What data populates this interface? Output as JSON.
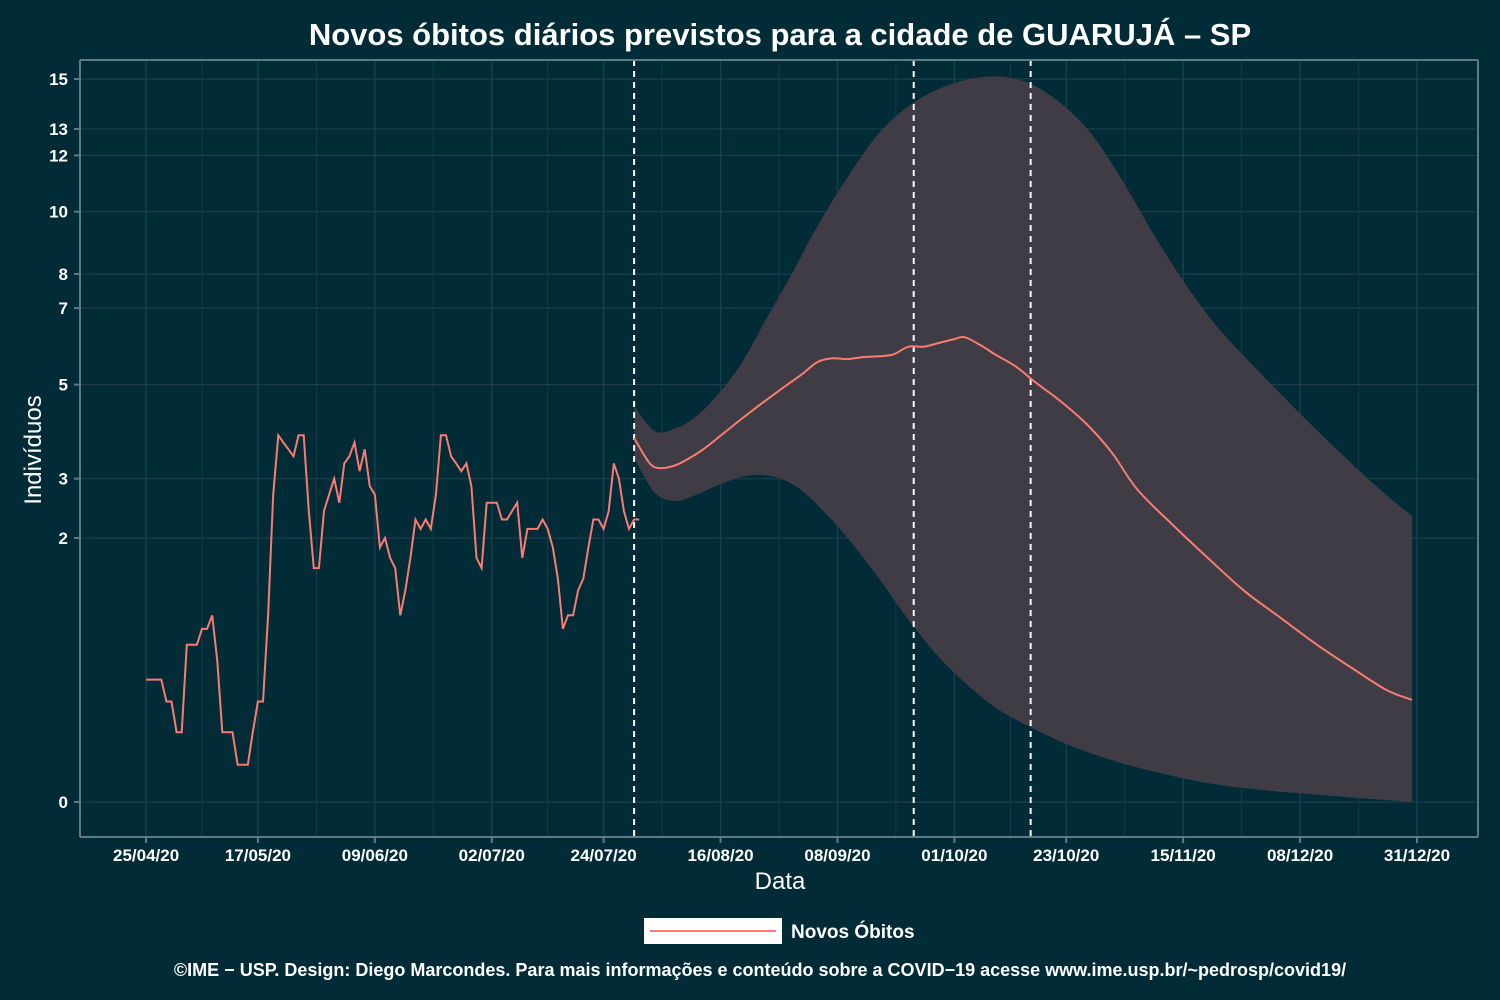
{
  "chart_data": {
    "type": "line",
    "title": "Novos óbitos diários previstos para a cidade de GUARUJÁ – SP",
    "xlabel": "Data",
    "ylabel": "Indivíduos",
    "x_ticks": [
      {
        "date": "2020-04-25",
        "label": "25/04/20"
      },
      {
        "date": "2020-05-17",
        "label": "17/05/20"
      },
      {
        "date": "2020-06-09",
        "label": "09/06/20"
      },
      {
        "date": "2020-07-02",
        "label": "02/07/20"
      },
      {
        "date": "2020-07-24",
        "label": "24/07/20"
      },
      {
        "date": "2020-08-16",
        "label": "16/08/20"
      },
      {
        "date": "2020-09-08",
        "label": "08/09/20"
      },
      {
        "date": "2020-10-01",
        "label": "01/10/20"
      },
      {
        "date": "2020-10-23",
        "label": "23/10/20"
      },
      {
        "date": "2020-11-15",
        "label": "15/11/20"
      },
      {
        "date": "2020-12-08",
        "label": "08/12/20"
      },
      {
        "date": "2020-12-31",
        "label": "31/12/20"
      }
    ],
    "y_scale": "sqrt",
    "y_ticks": [
      0,
      2,
      3,
      5,
      7,
      8,
      10,
      12,
      13,
      15
    ],
    "ylim": [
      0,
      15.8
    ],
    "xlim": [
      "2020-04-12",
      "2021-01-12"
    ],
    "grid": true,
    "legend_position": "bottom",
    "vertical_lines": [
      "2020-07-30",
      "2020-09-23",
      "2020-10-16"
    ],
    "colors": {
      "background": "#022b38",
      "line": "#f87c72",
      "band": "#403c45",
      "text": "#ffffff",
      "grid": "#1c3f4b",
      "axis": "#5f7a80"
    },
    "series": [
      {
        "name": "Novos Óbitos",
        "observed": [
          [
            "2020-04-25",
            0.43
          ],
          [
            "2020-04-26",
            0.43
          ],
          [
            "2020-04-27",
            0.43
          ],
          [
            "2020-04-28",
            0.43
          ],
          [
            "2020-04-29",
            0.29
          ],
          [
            "2020-04-30",
            0.29
          ],
          [
            "2020-05-01",
            0.14
          ],
          [
            "2020-05-02",
            0.14
          ],
          [
            "2020-05-03",
            0.71
          ],
          [
            "2020-05-04",
            0.71
          ],
          [
            "2020-05-05",
            0.71
          ],
          [
            "2020-05-06",
            0.86
          ],
          [
            "2020-05-07",
            0.86
          ],
          [
            "2020-05-08",
            1.0
          ],
          [
            "2020-05-09",
            0.57
          ],
          [
            "2020-05-10",
            0.14
          ],
          [
            "2020-05-11",
            0.14
          ],
          [
            "2020-05-12",
            0.14
          ],
          [
            "2020-05-13",
            0.04
          ],
          [
            "2020-05-14",
            0.04
          ],
          [
            "2020-05-15",
            0.04
          ],
          [
            "2020-05-16",
            0.14
          ],
          [
            "2020-05-17",
            0.29
          ],
          [
            "2020-05-18",
            0.29
          ],
          [
            "2020-05-19",
            1.0
          ],
          [
            "2020-05-20",
            2.71
          ],
          [
            "2020-05-21",
            3.86
          ],
          [
            "2020-05-22",
            3.71
          ],
          [
            "2020-05-23",
            3.57
          ],
          [
            "2020-05-24",
            3.43
          ],
          [
            "2020-05-25",
            3.86
          ],
          [
            "2020-05-26",
            3.86
          ],
          [
            "2020-05-27",
            2.43
          ],
          [
            "2020-05-28",
            1.57
          ],
          [
            "2020-05-29",
            1.57
          ],
          [
            "2020-05-30",
            2.43
          ],
          [
            "2020-05-31",
            2.71
          ],
          [
            "2020-06-01",
            3.0
          ],
          [
            "2020-06-02",
            2.57
          ],
          [
            "2020-06-03",
            3.29
          ],
          [
            "2020-06-04",
            3.43
          ],
          [
            "2020-06-05",
            3.71
          ],
          [
            "2020-06-06",
            3.14
          ],
          [
            "2020-06-07",
            3.57
          ],
          [
            "2020-06-08",
            2.86
          ],
          [
            "2020-06-09",
            2.71
          ],
          [
            "2020-06-10",
            1.86
          ],
          [
            "2020-06-11",
            2.0
          ],
          [
            "2020-06-12",
            1.71
          ],
          [
            "2020-06-13",
            1.57
          ],
          [
            "2020-06-14",
            1.0
          ],
          [
            "2020-06-15",
            1.29
          ],
          [
            "2020-06-16",
            1.71
          ],
          [
            "2020-06-17",
            2.29
          ],
          [
            "2020-06-18",
            2.14
          ],
          [
            "2020-06-19",
            2.29
          ],
          [
            "2020-06-20",
            2.14
          ],
          [
            "2020-06-21",
            2.71
          ],
          [
            "2020-06-22",
            3.86
          ],
          [
            "2020-06-23",
            3.86
          ],
          [
            "2020-06-24",
            3.43
          ],
          [
            "2020-06-25",
            3.29
          ],
          [
            "2020-06-26",
            3.14
          ],
          [
            "2020-06-27",
            3.29
          ],
          [
            "2020-06-28",
            2.86
          ],
          [
            "2020-06-29",
            1.71
          ],
          [
            "2020-06-30",
            1.57
          ],
          [
            "2020-07-01",
            2.57
          ],
          [
            "2020-07-02",
            2.57
          ],
          [
            "2020-07-03",
            2.57
          ],
          [
            "2020-07-04",
            2.29
          ],
          [
            "2020-07-05",
            2.29
          ],
          [
            "2020-07-06",
            2.43
          ],
          [
            "2020-07-07",
            2.57
          ],
          [
            "2020-07-08",
            1.71
          ],
          [
            "2020-07-09",
            2.14
          ],
          [
            "2020-07-10",
            2.14
          ],
          [
            "2020-07-11",
            2.14
          ],
          [
            "2020-07-12",
            2.29
          ],
          [
            "2020-07-13",
            2.14
          ],
          [
            "2020-07-14",
            1.86
          ],
          [
            "2020-07-15",
            1.43
          ],
          [
            "2020-07-16",
            0.86
          ],
          [
            "2020-07-17",
            1.0
          ],
          [
            "2020-07-18",
            1.0
          ],
          [
            "2020-07-19",
            1.29
          ],
          [
            "2020-07-20",
            1.43
          ],
          [
            "2020-07-21",
            1.86
          ],
          [
            "2020-07-22",
            2.29
          ],
          [
            "2020-07-23",
            2.29
          ],
          [
            "2020-07-24",
            2.14
          ],
          [
            "2020-07-25",
            2.43
          ],
          [
            "2020-07-26",
            3.29
          ],
          [
            "2020-07-27",
            3.0
          ],
          [
            "2020-07-28",
            2.43
          ],
          [
            "2020-07-29",
            2.14
          ],
          [
            "2020-07-30",
            2.29
          ],
          [
            "2020-07-31",
            2.29
          ]
        ],
        "forecast": [
          [
            "2020-07-30",
            3.8
          ],
          [
            "2020-08-02",
            3.3
          ],
          [
            "2020-08-04",
            3.2
          ],
          [
            "2020-08-07",
            3.25
          ],
          [
            "2020-08-10",
            3.4
          ],
          [
            "2020-08-13",
            3.6
          ],
          [
            "2020-08-16",
            3.85
          ],
          [
            "2020-08-20",
            4.2
          ],
          [
            "2020-08-24",
            4.55
          ],
          [
            "2020-08-28",
            4.9
          ],
          [
            "2020-09-01",
            5.25
          ],
          [
            "2020-09-04",
            5.55
          ],
          [
            "2020-09-07",
            5.65
          ],
          [
            "2020-09-10",
            5.63
          ],
          [
            "2020-09-13",
            5.68
          ],
          [
            "2020-09-16",
            5.7
          ],
          [
            "2020-09-19",
            5.75
          ],
          [
            "2020-09-22",
            5.95
          ],
          [
            "2020-09-25",
            5.95
          ],
          [
            "2020-09-28",
            6.05
          ],
          [
            "2020-10-01",
            6.15
          ],
          [
            "2020-10-03",
            6.2
          ],
          [
            "2020-10-06",
            6.0
          ],
          [
            "2020-10-09",
            5.75
          ],
          [
            "2020-10-13",
            5.45
          ],
          [
            "2020-10-17",
            5.05
          ],
          [
            "2020-10-22",
            4.6
          ],
          [
            "2020-10-27",
            4.1
          ],
          [
            "2020-11-01",
            3.5
          ],
          [
            "2020-11-06",
            2.8
          ],
          [
            "2020-11-13",
            2.2
          ],
          [
            "2020-11-20",
            1.7
          ],
          [
            "2020-11-27",
            1.28
          ],
          [
            "2020-12-04",
            0.98
          ],
          [
            "2020-12-11",
            0.72
          ],
          [
            "2020-12-18",
            0.52
          ],
          [
            "2020-12-25",
            0.36
          ],
          [
            "2020-12-30",
            0.3
          ]
        ],
        "band_upper": [
          [
            "2020-07-30",
            4.5
          ],
          [
            "2020-08-03",
            3.95
          ],
          [
            "2020-08-07",
            4.0
          ],
          [
            "2020-08-11",
            4.25
          ],
          [
            "2020-08-15",
            4.7
          ],
          [
            "2020-08-20",
            5.5
          ],
          [
            "2020-08-25",
            6.7
          ],
          [
            "2020-08-30",
            8.0
          ],
          [
            "2020-09-04",
            9.5
          ],
          [
            "2020-09-10",
            11.2
          ],
          [
            "2020-09-16",
            12.8
          ],
          [
            "2020-09-22",
            13.9
          ],
          [
            "2020-09-28",
            14.6
          ],
          [
            "2020-10-04",
            15.0
          ],
          [
            "2020-10-10",
            15.1
          ],
          [
            "2020-10-16",
            14.8
          ],
          [
            "2020-10-22",
            14.0
          ],
          [
            "2020-10-28",
            12.8
          ],
          [
            "2020-11-03",
            11.1
          ],
          [
            "2020-11-09",
            9.3
          ],
          [
            "2020-11-15",
            7.8
          ],
          [
            "2020-11-21",
            6.6
          ],
          [
            "2020-11-27",
            5.7
          ],
          [
            "2020-12-04",
            4.8
          ],
          [
            "2020-12-11",
            4.0
          ],
          [
            "2020-12-18",
            3.3
          ],
          [
            "2020-12-25",
            2.7
          ],
          [
            "2020-12-30",
            2.35
          ]
        ],
        "band_lower": [
          [
            "2020-07-30",
            3.4
          ],
          [
            "2020-08-03",
            2.75
          ],
          [
            "2020-08-07",
            2.6
          ],
          [
            "2020-08-11",
            2.7
          ],
          [
            "2020-08-16",
            2.9
          ],
          [
            "2020-08-21",
            3.05
          ],
          [
            "2020-08-26",
            3.05
          ],
          [
            "2020-08-31",
            2.85
          ],
          [
            "2020-09-05",
            2.45
          ],
          [
            "2020-09-10",
            2.0
          ],
          [
            "2020-09-16",
            1.45
          ],
          [
            "2020-09-22",
            0.95
          ],
          [
            "2020-09-28",
            0.6
          ],
          [
            "2020-10-04",
            0.38
          ],
          [
            "2020-10-10",
            0.24
          ],
          [
            "2020-10-17",
            0.15
          ],
          [
            "2020-10-24",
            0.09
          ],
          [
            "2020-11-01",
            0.05
          ],
          [
            "2020-11-10",
            0.025
          ],
          [
            "2020-11-20",
            0.01
          ],
          [
            "2020-12-01",
            0.004
          ],
          [
            "2020-12-15",
            0.001
          ],
          [
            "2020-12-30",
            0.0
          ]
        ]
      }
    ]
  },
  "legend": {
    "label": "Novos Óbitos"
  },
  "footer": "©IME − USP. Design: Diego Marcondes. Para mais informações e conteúdo sobre a COVID−19 acesse www.ime.usp.br/~pedrosp/covid19/"
}
